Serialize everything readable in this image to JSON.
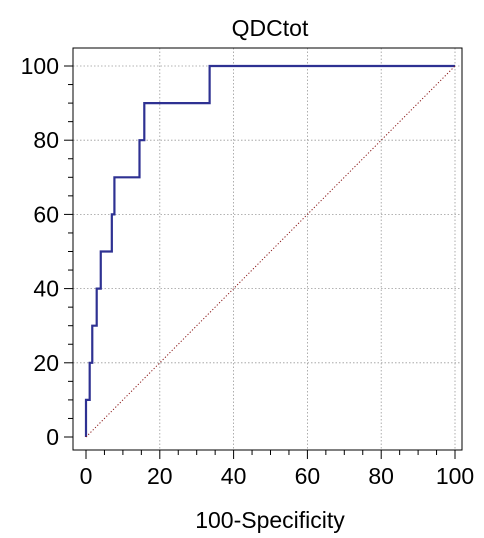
{
  "chart_data": {
    "type": "line",
    "title": "QDCtot",
    "xlabel": "100-Specificity",
    "ylabel": "",
    "xlim": [
      0,
      100
    ],
    "ylim": [
      0,
      100
    ],
    "x_ticks": [
      0,
      20,
      40,
      60,
      80,
      100
    ],
    "y_ticks": [
      0,
      20,
      40,
      60,
      80,
      100
    ],
    "grid": true,
    "series": [
      {
        "color": "#2e3192",
        "style": "solid",
        "x": [
          0,
          0,
          1,
          1,
          1.7,
          1.7,
          2.9,
          2.9,
          4,
          4,
          7,
          7,
          7.7,
          7.7,
          14.5,
          14.5,
          15.8,
          15.8,
          33.5,
          33.5,
          100
        ],
        "y": [
          0,
          10,
          10,
          20,
          20,
          30,
          30,
          40,
          40,
          50,
          50,
          60,
          60,
          70,
          70,
          80,
          80,
          90,
          90,
          100,
          100
        ]
      },
      {
        "color": "#8b1a1a",
        "style": "dotted",
        "x": [
          0,
          100
        ],
        "y": [
          0,
          100
        ]
      }
    ]
  }
}
